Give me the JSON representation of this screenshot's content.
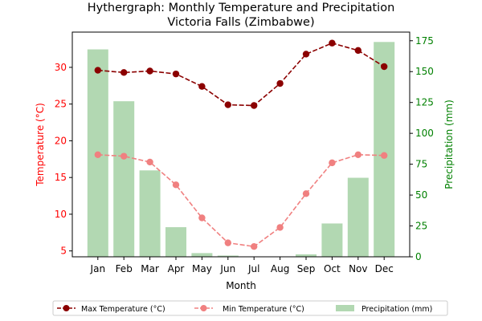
{
  "chart_data": {
    "type": "bar+line",
    "title_line1": "Hythergraph: Monthly Temperature and Precipitation",
    "title_line2": "Victoria Falls (Zimbabwe)",
    "xlabel": "Month",
    "ylabel_left": "Temperature (°C)",
    "ylabel_right": "Precipitation (mm)",
    "categories": [
      "Jan",
      "Feb",
      "Mar",
      "Apr",
      "May",
      "Jun",
      "Jul",
      "Aug",
      "Sep",
      "Oct",
      "Nov",
      "Dec"
    ],
    "ylim_left": [
      4.2,
      34.8
    ],
    "ylim_right": [
      0,
      182
    ],
    "yticks_left": [
      5,
      10,
      15,
      20,
      25,
      30
    ],
    "yticks_right": [
      0,
      25,
      50,
      75,
      100,
      125,
      150,
      175
    ],
    "series": [
      {
        "name": "Max Temperature (°C)",
        "kind": "line",
        "axis": "left",
        "color": "#8b0000",
        "style": "dashed",
        "marker": "circle",
        "values": [
          29.6,
          29.3,
          29.5,
          29.1,
          27.4,
          24.9,
          24.8,
          27.8,
          31.8,
          33.3,
          32.3,
          30.1
        ]
      },
      {
        "name": "Min Temperature (°C)",
        "kind": "line",
        "axis": "left",
        "color": "#f08080",
        "style": "dashed",
        "marker": "circle",
        "values": [
          18.1,
          17.9,
          17.1,
          14.0,
          9.5,
          6.1,
          5.6,
          8.2,
          12.8,
          17.0,
          18.1,
          18.0
        ]
      },
      {
        "name": "Precipitation (mm)",
        "kind": "bar",
        "axis": "right",
        "color": "#b2d8b2",
        "values": [
          168,
          126,
          70,
          24,
          3,
          1,
          0,
          0,
          2,
          27,
          64,
          174
        ]
      }
    ],
    "legend_placement": "bottom-center",
    "grid": false,
    "left_axis_color": "#ff0000",
    "right_axis_color": "#008000"
  }
}
